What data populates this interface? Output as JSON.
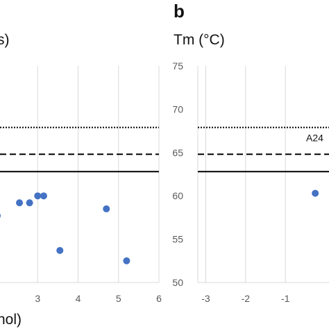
{
  "chart_data": [
    {
      "type": "scatter",
      "panel_label": "",
      "title": "",
      "ylabel": "s)",
      "xlabel": "nol)",
      "xlim": [
        2,
        6
      ],
      "ylim": [
        50,
        75
      ],
      "x_ticks": [
        "3",
        "4",
        "5",
        "6"
      ],
      "grid": "vertical",
      "series": [
        {
          "color": "#4472c4",
          "points": [
            [
              2.0,
              57.7
            ],
            [
              2.8,
              59.2
            ],
            [
              3.0,
              60.0
            ],
            [
              3.15,
              60.0
            ],
            [
              3.55,
              53.7
            ],
            [
              4.7,
              58.5
            ],
            [
              5.2,
              52.5
            ],
            [
              2.55,
              59.2
            ]
          ]
        }
      ],
      "reference_lines": [
        {
          "style": "dotted",
          "y": 67.9
        },
        {
          "style": "dashed",
          "y": 64.8
        },
        {
          "style": "solid",
          "y": 62.8
        }
      ]
    },
    {
      "type": "scatter",
      "panel_label": "b",
      "title": "",
      "ylabel": "Tm (°C)",
      "xlabel": "",
      "xlim": [
        -3.2,
        0.2
      ],
      "ylim": [
        50,
        75
      ],
      "x_ticks": [
        "-3",
        "-2",
        "-1"
      ],
      "y_ticks": [
        "50",
        "55",
        "60",
        "65",
        "70",
        "75"
      ],
      "grid": "vertical",
      "series": [
        {
          "color": "#4472c4",
          "points": [
            [
              -0.25,
              60.3
            ]
          ]
        }
      ],
      "reference_lines": [
        {
          "style": "dotted",
          "y": 67.9,
          "label": "A24"
        },
        {
          "style": "dashed",
          "y": 64.8
        },
        {
          "style": "solid",
          "y": 62.8
        }
      ]
    }
  ]
}
